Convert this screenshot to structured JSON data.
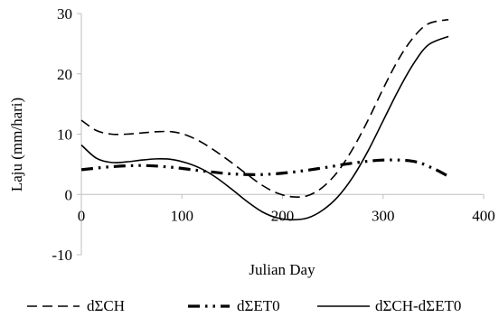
{
  "chart_data": {
    "type": "line",
    "title": "",
    "xlabel": "Julian Day",
    "ylabel": "Laju (mm/hari)",
    "xlim": [
      0,
      400
    ],
    "ylim": [
      -10,
      30
    ],
    "xticks": [
      "0",
      "100",
      "200",
      "300",
      "400"
    ],
    "yticks": [
      "30",
      "20",
      "10",
      "0",
      "-10"
    ],
    "legend_position": "bottom",
    "grid": false,
    "series": [
      {
        "name": "dΣCH",
        "style": "dashed",
        "color": "#000000",
        "x": [
          0,
          15,
          30,
          45,
          60,
          75,
          90,
          105,
          120,
          135,
          150,
          165,
          180,
          195,
          210,
          225,
          240,
          255,
          270,
          285,
          300,
          315,
          330,
          345,
          365
        ],
        "y": [
          12.3,
          10.6,
          10.0,
          10.0,
          10.2,
          10.4,
          10.4,
          9.8,
          8.6,
          7.0,
          5.2,
          3.3,
          1.5,
          0.2,
          -0.4,
          -0.2,
          1.2,
          3.8,
          7.6,
          12.3,
          17.5,
          22.3,
          26.0,
          28.3,
          29.0
        ]
      },
      {
        "name": "dΣET0",
        "style": "dash-dot-dot",
        "color": "#000000",
        "x": [
          0,
          30,
          60,
          90,
          120,
          150,
          180,
          210,
          240,
          270,
          300,
          330,
          350,
          365
        ],
        "y": [
          4.1,
          4.6,
          4.8,
          4.5,
          3.9,
          3.4,
          3.3,
          3.7,
          4.4,
          5.2,
          5.7,
          5.5,
          4.3,
          3.0
        ]
      },
      {
        "name": "dΣCH-dΣET0",
        "style": "solid",
        "color": "#000000",
        "x": [
          0,
          15,
          30,
          45,
          60,
          75,
          90,
          105,
          120,
          135,
          150,
          165,
          180,
          195,
          210,
          225,
          240,
          255,
          270,
          285,
          300,
          315,
          330,
          345,
          365
        ],
        "y": [
          8.2,
          6.0,
          5.3,
          5.4,
          5.7,
          5.9,
          5.8,
          5.2,
          4.2,
          2.7,
          0.8,
          -1.2,
          -2.9,
          -3.9,
          -4.2,
          -3.9,
          -2.6,
          -0.4,
          2.9,
          7.2,
          12.2,
          17.2,
          21.6,
          24.8,
          26.2
        ]
      }
    ]
  }
}
